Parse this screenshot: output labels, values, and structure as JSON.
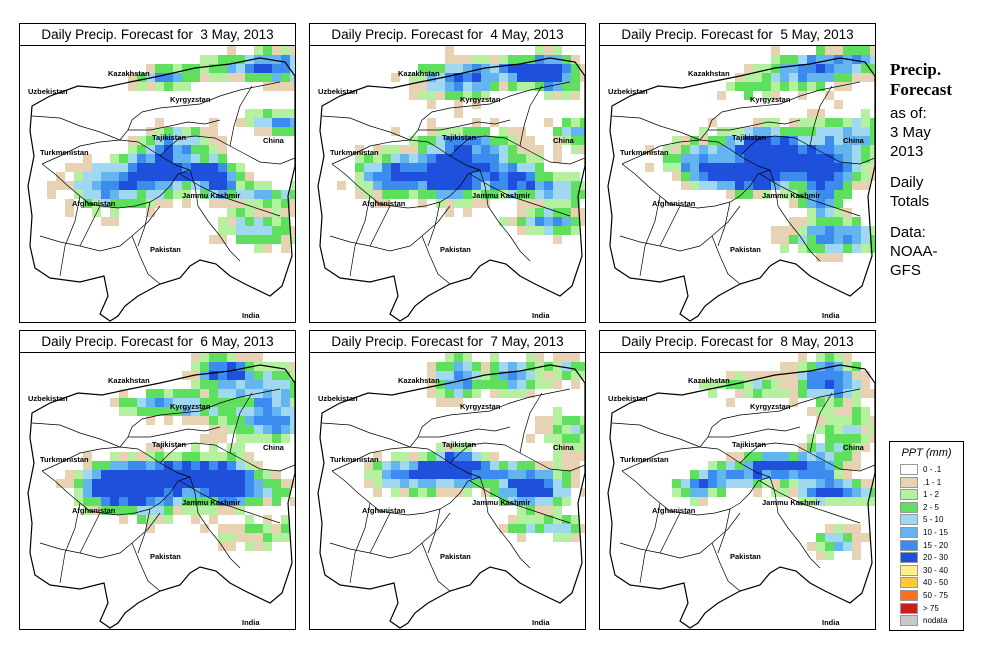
{
  "panels": [
    {
      "title": "Daily Precip. Forecast for  3 May, 2013",
      "seed": 11,
      "bias": 0.0
    },
    {
      "title": "Daily Precip. Forecast for  4 May, 2013",
      "seed": 23,
      "bias": 0.05
    },
    {
      "title": "Daily Precip. Forecast for  5 May, 2013",
      "seed": 37,
      "bias": 0.08
    },
    {
      "title": "Daily Precip. Forecast for  6 May, 2013",
      "seed": 41,
      "bias": -0.02
    },
    {
      "title": "Daily Precip. Forecast for  7 May, 2013",
      "seed": 53,
      "bias": 0.0
    },
    {
      "title": "Daily Precip. Forecast for  8 May, 2013",
      "seed": 67,
      "bias": 0.06
    }
  ],
  "map_labels": [
    "Kazakhstan",
    "Uzbekistan",
    "Kyrgyzstan",
    "Tajikistan",
    "China",
    "Turkmenistan",
    "Afghanistan",
    "Jammu Kashmir",
    "Pakistan",
    "India"
  ],
  "sidebar": {
    "title": "Precip.\nForecast",
    "asof_label": "as of:",
    "asof_date": "3 May\n2013",
    "totals": "Daily\nTotals",
    "source": "Data:\nNOAA-\nGFS"
  },
  "legend": {
    "title": "PPT (mm)",
    "items": [
      {
        "label": "0 - .1",
        "color": "#ffffff"
      },
      {
        "label": ".1 - 1",
        "color": "#e8d2b4"
      },
      {
        "label": "1 - 2",
        "color": "#b4f0a0"
      },
      {
        "label": "2 - 5",
        "color": "#5ee05e"
      },
      {
        "label": "5 - 10",
        "color": "#a0d8f0"
      },
      {
        "label": "10 - 15",
        "color": "#64b4f0"
      },
      {
        "label": "15 - 20",
        "color": "#3c8cf0"
      },
      {
        "label": "20 - 30",
        "color": "#1e50dc"
      },
      {
        "label": "30 - 40",
        "color": "#fff08c"
      },
      {
        "label": "40 - 50",
        "color": "#ffc83c"
      },
      {
        "label": "50 - 75",
        "color": "#ff6e1e"
      },
      {
        "label": "> 75",
        "color": "#c81e1e"
      },
      {
        "label": "nodata",
        "color": "#c8c8c8"
      }
    ]
  }
}
